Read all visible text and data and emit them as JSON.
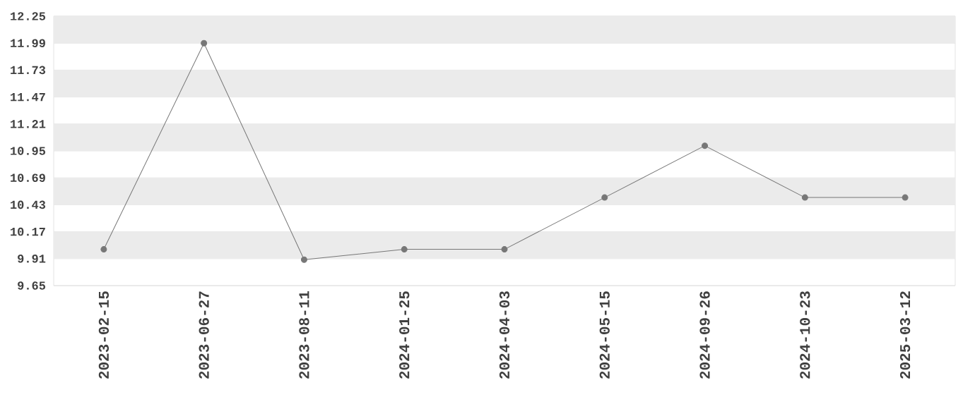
{
  "chart_data": {
    "type": "line",
    "categories": [
      "2023-02-15",
      "2023-06-27",
      "2023-08-11",
      "2024-01-25",
      "2024-04-03",
      "2024-05-15",
      "2024-09-26",
      "2024-10-23",
      "2025-03-12"
    ],
    "values": [
      10.0,
      11.99,
      9.9,
      10.0,
      10.0,
      10.5,
      11.0,
      10.5,
      10.5
    ],
    "color": "#777777",
    "ylim": [
      9.65,
      12.25
    ],
    "yticks": [
      9.65,
      9.91,
      10.17,
      10.43,
      10.69,
      10.95,
      11.21,
      11.47,
      11.73,
      11.99,
      12.25
    ],
    "grid": "y",
    "marker": "circle",
    "line_style": "solid"
  }
}
